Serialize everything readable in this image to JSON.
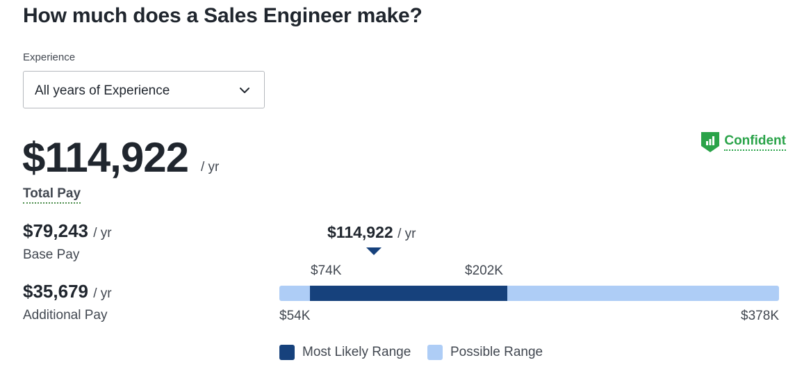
{
  "header": {
    "title": "How much does a Sales Engineer make?"
  },
  "experience": {
    "label": "Experience",
    "selected": "All years of Experience",
    "icon": "chevron-down-icon"
  },
  "total": {
    "amount": "$114,922",
    "unit": "/ yr",
    "label": "Total Pay"
  },
  "confidence": {
    "label": "Confident",
    "icon": "bar-chart-shield-icon",
    "color": "#2aa349"
  },
  "base": {
    "amount": "$79,243",
    "unit": "/ yr",
    "label": "Base Pay"
  },
  "additional": {
    "amount": "$35,679",
    "unit": "/ yr",
    "label": "Additional Pay"
  },
  "range": {
    "marker_amount": "$114,922",
    "marker_unit": "/ yr",
    "marker_value": 114922,
    "min": 54000,
    "max": 378000,
    "likely_low": 74000,
    "likely_high": 202000,
    "min_label": "$54K",
    "max_label": "$378K",
    "likely_low_label": "$74K",
    "likely_high_label": "$202K",
    "colors": {
      "likely": "#16417c",
      "possible": "#aecdf6"
    }
  },
  "legend": {
    "likely_label": "Most Likely Range",
    "possible_label": "Possible Range"
  }
}
